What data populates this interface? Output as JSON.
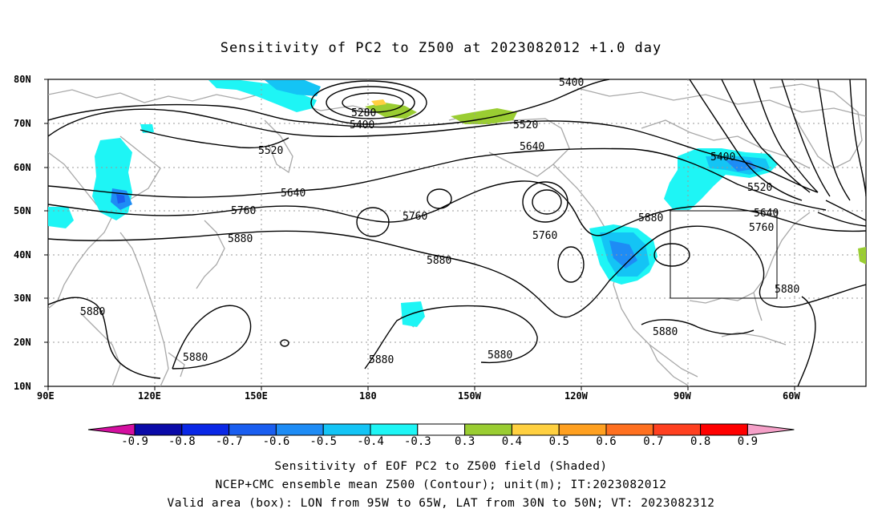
{
  "title": "Sensitivity of PC2 to Z500 at 2023082012 +1.0 day",
  "captions": [
    "Sensitivity of EOF PC2 to Z500 field (Shaded)",
    "NCEP+CMC ensemble mean Z500 (Contour); unit(m); IT:2023082012",
    "Valid area (box): LON from 95W to 65W, LAT from 30N to 50N; VT: 2023082312"
  ],
  "lat_labels": [
    "80N",
    "70N",
    "60N",
    "50N",
    "40N",
    "30N",
    "20N",
    "10N"
  ],
  "lon_labels": [
    "90E",
    "120E",
    "150E",
    "180",
    "150W",
    "120W",
    "90W",
    "60W"
  ],
  "colorbar": {
    "labels": [
      "-0.9",
      "-0.8",
      "-0.7",
      "-0.6",
      "-0.5",
      "-0.4",
      "-0.3",
      "0.3",
      "0.4",
      "0.5",
      "0.6",
      "0.7",
      "0.8",
      "0.9"
    ],
    "colors": [
      "#d40fa0",
      "#0a0aa8",
      "#0a28e6",
      "#1a5ef0",
      "#1e8cf5",
      "#14c4f5",
      "#1ef5f5",
      "#ffffff",
      "#9acd32",
      "#ffd040",
      "#ffa020",
      "#ff7020",
      "#ff4020",
      "#ff0000",
      "#f5a0c8"
    ]
  },
  "contour_labels": [
    "5400",
    "5280",
    "5400",
    "5520",
    "5520",
    "5640",
    "5640",
    "5760",
    "5760",
    "5760",
    "5880",
    "5880",
    "5880",
    "5880",
    "5880",
    "5880",
    "5880",
    "5880",
    "5400",
    "5520",
    "5640",
    "5760",
    "5880"
  ],
  "valid_box": {
    "lon_from": "95W",
    "lon_to": "65W",
    "lat_from": "30N",
    "lat_to": "50N"
  }
}
